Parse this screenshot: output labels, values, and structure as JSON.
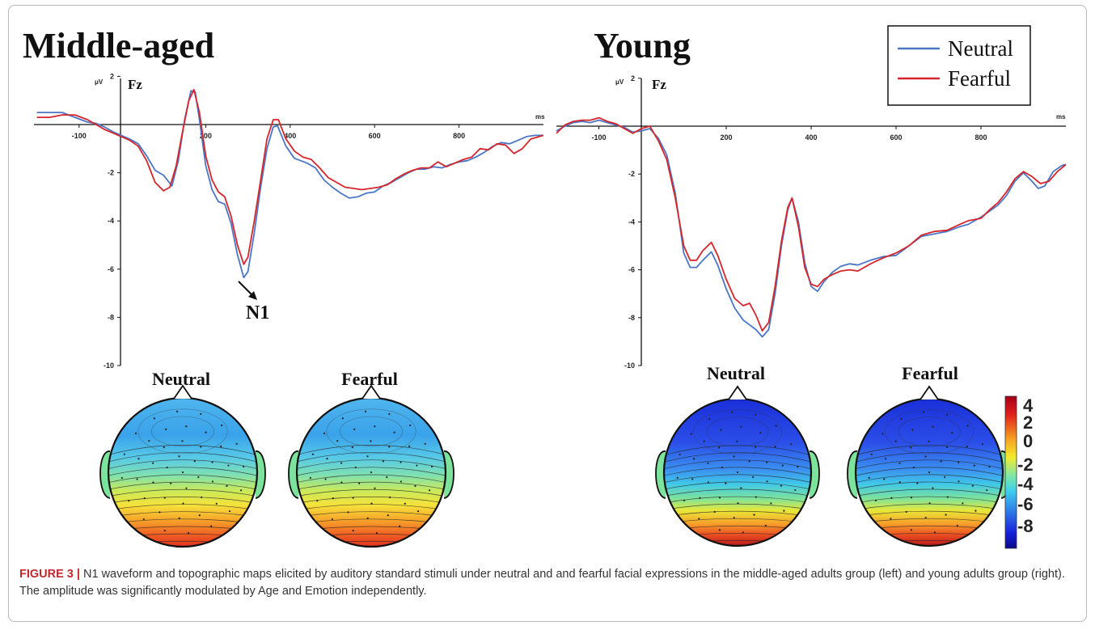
{
  "chart_data": [
    {
      "type": "line",
      "title": "Middle-aged",
      "channel": "Fz",
      "ylabel": "μV",
      "xlabel": "ms",
      "xlim": [
        -200,
        1000
      ],
      "ylim": [
        -10,
        2
      ],
      "x_ticks": [
        -100,
        200,
        400,
        600,
        800
      ],
      "y_ticks": [
        -10,
        -8,
        -6,
        -4,
        -2,
        2
      ],
      "annotation": "N1",
      "series": [
        {
          "name": "Neutral",
          "color": "#4a76c6",
          "points": [
            [
              -200,
              0.5
            ],
            [
              -170,
              0.5
            ],
            [
              -140,
              0.5
            ],
            [
              -110,
              0.3
            ],
            [
              -80,
              0.1
            ],
            [
              -60,
              0.05
            ],
            [
              -40,
              -0.1
            ],
            [
              -20,
              -0.3
            ],
            [
              0,
              -0.45
            ],
            [
              20,
              -0.6
            ],
            [
              40,
              -0.8
            ],
            [
              60,
              -1.3
            ],
            [
              80,
              -1.9
            ],
            [
              100,
              -2.1
            ],
            [
              120,
              -2.55
            ],
            [
              135,
              -1.5
            ],
            [
              150,
              0.2
            ],
            [
              165,
              1.4
            ],
            [
              175,
              1.35
            ],
            [
              185,
              0.2
            ],
            [
              200,
              -1.7
            ],
            [
              215,
              -2.7
            ],
            [
              230,
              -3.2
            ],
            [
              245,
              -3.3
            ],
            [
              260,
              -4.1
            ],
            [
              275,
              -5.4
            ],
            [
              290,
              -6.35
            ],
            [
              300,
              -6.1
            ],
            [
              315,
              -4.5
            ],
            [
              330,
              -2.6
            ],
            [
              345,
              -1.0
            ],
            [
              360,
              -0.1
            ],
            [
              370,
              -0.05
            ],
            [
              390,
              -0.9
            ],
            [
              410,
              -1.4
            ],
            [
              440,
              -1.6
            ],
            [
              460,
              -1.8
            ],
            [
              480,
              -2.3
            ],
            [
              500,
              -2.6
            ],
            [
              520,
              -2.85
            ],
            [
              540,
              -3.05
            ],
            [
              560,
              -3.0
            ],
            [
              580,
              -2.85
            ],
            [
              600,
              -2.8
            ],
            [
              620,
              -2.55
            ],
            [
              640,
              -2.4
            ],
            [
              660,
              -2.2
            ],
            [
              680,
              -2.0
            ],
            [
              700,
              -1.85
            ],
            [
              720,
              -1.85
            ],
            [
              740,
              -1.75
            ],
            [
              760,
              -1.8
            ],
            [
              780,
              -1.65
            ],
            [
              800,
              -1.55
            ],
            [
              820,
              -1.5
            ],
            [
              840,
              -1.35
            ],
            [
              860,
              -1.15
            ],
            [
              880,
              -0.9
            ],
            [
              900,
              -0.75
            ],
            [
              920,
              -0.8
            ],
            [
              940,
              -0.65
            ],
            [
              960,
              -0.5
            ],
            [
              980,
              -0.45
            ],
            [
              1000,
              -0.45
            ]
          ]
        },
        {
          "name": "Fearful",
          "color": "#d6252b",
          "points": [
            [
              -200,
              0.3
            ],
            [
              -170,
              0.3
            ],
            [
              -140,
              0.4
            ],
            [
              -110,
              0.4
            ],
            [
              -80,
              0.2
            ],
            [
              -60,
              0.0
            ],
            [
              -40,
              -0.2
            ],
            [
              -20,
              -0.35
            ],
            [
              0,
              -0.5
            ],
            [
              20,
              -0.65
            ],
            [
              40,
              -0.9
            ],
            [
              60,
              -1.5
            ],
            [
              80,
              -2.4
            ],
            [
              100,
              -2.75
            ],
            [
              115,
              -2.6
            ],
            [
              130,
              -1.7
            ],
            [
              145,
              -0.3
            ],
            [
              160,
              1.0
            ],
            [
              172,
              1.45
            ],
            [
              185,
              0.5
            ],
            [
              200,
              -1.3
            ],
            [
              215,
              -2.3
            ],
            [
              230,
              -2.8
            ],
            [
              245,
              -3.0
            ],
            [
              260,
              -3.8
            ],
            [
              275,
              -5.0
            ],
            [
              290,
              -5.8
            ],
            [
              300,
              -5.5
            ],
            [
              315,
              -4.0
            ],
            [
              330,
              -2.3
            ],
            [
              345,
              -0.6
            ],
            [
              360,
              0.2
            ],
            [
              372,
              0.2
            ],
            [
              390,
              -0.6
            ],
            [
              410,
              -1.1
            ],
            [
              430,
              -1.35
            ],
            [
              450,
              -1.45
            ],
            [
              470,
              -1.8
            ],
            [
              490,
              -2.2
            ],
            [
              510,
              -2.4
            ],
            [
              530,
              -2.6
            ],
            [
              550,
              -2.65
            ],
            [
              570,
              -2.7
            ],
            [
              590,
              -2.65
            ],
            [
              610,
              -2.6
            ],
            [
              630,
              -2.5
            ],
            [
              650,
              -2.25
            ],
            [
              670,
              -2.05
            ],
            [
              690,
              -1.9
            ],
            [
              710,
              -1.8
            ],
            [
              730,
              -1.8
            ],
            [
              750,
              -1.55
            ],
            [
              770,
              -1.75
            ],
            [
              790,
              -1.6
            ],
            [
              810,
              -1.45
            ],
            [
              830,
              -1.35
            ],
            [
              850,
              -1.0
            ],
            [
              870,
              -1.05
            ],
            [
              890,
              -0.8
            ],
            [
              910,
              -0.85
            ],
            [
              930,
              -1.2
            ],
            [
              950,
              -1.0
            ],
            [
              970,
              -0.6
            ],
            [
              1000,
              -0.45
            ]
          ]
        }
      ]
    },
    {
      "type": "line",
      "title": "Young",
      "channel": "Fz",
      "ylabel": "μV",
      "xlabel": "ms",
      "xlim": [
        -200,
        1000
      ],
      "ylim": [
        -10,
        2
      ],
      "x_ticks": [
        -100,
        200,
        400,
        600,
        800
      ],
      "y_ticks": [
        -10,
        -8,
        -6,
        -4,
        -2,
        2
      ],
      "series": [
        {
          "name": "Neutral",
          "color": "#4a76c6",
          "points": [
            [
              -200,
              -0.2
            ],
            [
              -180,
              0.0
            ],
            [
              -160,
              0.15
            ],
            [
              -140,
              0.2
            ],
            [
              -120,
              0.15
            ],
            [
              -100,
              0.25
            ],
            [
              -80,
              0.15
            ],
            [
              -60,
              0.05
            ],
            [
              -40,
              -0.05
            ],
            [
              -20,
              -0.25
            ],
            [
              0,
              -0.2
            ],
            [
              20,
              -0.1
            ],
            [
              40,
              -0.5
            ],
            [
              60,
              -1.2
            ],
            [
              80,
              -2.8
            ],
            [
              100,
              -5.3
            ],
            [
              115,
              -5.9
            ],
            [
              130,
              -5.9
            ],
            [
              145,
              -5.6
            ],
            [
              165,
              -5.25
            ],
            [
              180,
              -5.8
            ],
            [
              200,
              -6.8
            ],
            [
              220,
              -7.6
            ],
            [
              240,
              -8.1
            ],
            [
              255,
              -8.3
            ],
            [
              270,
              -8.5
            ],
            [
              285,
              -8.8
            ],
            [
              300,
              -8.5
            ],
            [
              315,
              -7.0
            ],
            [
              330,
              -5.0
            ],
            [
              345,
              -3.5
            ],
            [
              355,
              -3.0
            ],
            [
              370,
              -4.0
            ],
            [
              385,
              -5.7
            ],
            [
              400,
              -6.7
            ],
            [
              415,
              -6.9
            ],
            [
              430,
              -6.5
            ],
            [
              450,
              -6.1
            ],
            [
              470,
              -5.85
            ],
            [
              490,
              -5.75
            ],
            [
              510,
              -5.8
            ],
            [
              540,
              -5.6
            ],
            [
              570,
              -5.45
            ],
            [
              600,
              -5.4
            ],
            [
              630,
              -5.0
            ],
            [
              660,
              -4.6
            ],
            [
              690,
              -4.5
            ],
            [
              720,
              -4.4
            ],
            [
              750,
              -4.2
            ],
            [
              770,
              -4.1
            ],
            [
              800,
              -3.8
            ],
            [
              820,
              -3.55
            ],
            [
              840,
              -3.3
            ],
            [
              860,
              -2.9
            ],
            [
              880,
              -2.3
            ],
            [
              900,
              -1.95
            ],
            [
              920,
              -2.3
            ],
            [
              935,
              -2.6
            ],
            [
              950,
              -2.5
            ],
            [
              970,
              -1.9
            ],
            [
              990,
              -1.65
            ],
            [
              1000,
              -1.6
            ]
          ]
        },
        {
          "name": "Fearful",
          "color": "#d6252b",
          "points": [
            [
              -200,
              -0.3
            ],
            [
              -180,
              0.05
            ],
            [
              -160,
              0.2
            ],
            [
              -140,
              0.25
            ],
            [
              -120,
              0.25
            ],
            [
              -100,
              0.35
            ],
            [
              -80,
              0.2
            ],
            [
              -60,
              0.1
            ],
            [
              -40,
              -0.1
            ],
            [
              -20,
              -0.3
            ],
            [
              0,
              -0.1
            ],
            [
              20,
              0.0
            ],
            [
              40,
              -0.6
            ],
            [
              60,
              -1.4
            ],
            [
              80,
              -3.0
            ],
            [
              100,
              -5.0
            ],
            [
              115,
              -5.6
            ],
            [
              130,
              -5.6
            ],
            [
              145,
              -5.2
            ],
            [
              165,
              -4.85
            ],
            [
              180,
              -5.4
            ],
            [
              200,
              -6.4
            ],
            [
              220,
              -7.2
            ],
            [
              240,
              -7.5
            ],
            [
              255,
              -7.4
            ],
            [
              270,
              -7.9
            ],
            [
              285,
              -8.55
            ],
            [
              300,
              -8.2
            ],
            [
              315,
              -6.7
            ],
            [
              330,
              -4.8
            ],
            [
              345,
              -3.4
            ],
            [
              355,
              -3.0
            ],
            [
              370,
              -4.2
            ],
            [
              385,
              -5.9
            ],
            [
              400,
              -6.6
            ],
            [
              415,
              -6.7
            ],
            [
              430,
              -6.4
            ],
            [
              450,
              -6.2
            ],
            [
              470,
              -6.05
            ],
            [
              490,
              -6.0
            ],
            [
              510,
              -6.05
            ],
            [
              540,
              -5.75
            ],
            [
              570,
              -5.5
            ],
            [
              600,
              -5.3
            ],
            [
              630,
              -5.0
            ],
            [
              660,
              -4.55
            ],
            [
              690,
              -4.4
            ],
            [
              720,
              -4.35
            ],
            [
              750,
              -4.1
            ],
            [
              770,
              -3.95
            ],
            [
              800,
              -3.85
            ],
            [
              820,
              -3.5
            ],
            [
              840,
              -3.2
            ],
            [
              860,
              -2.75
            ],
            [
              880,
              -2.2
            ],
            [
              900,
              -1.9
            ],
            [
              920,
              -2.1
            ],
            [
              940,
              -2.4
            ],
            [
              960,
              -2.3
            ],
            [
              980,
              -1.9
            ],
            [
              1000,
              -1.6
            ]
          ]
        }
      ]
    }
  ],
  "legend": {
    "items": [
      {
        "label": "Neutral",
        "color": "#4a76c6"
      },
      {
        "label": "Fearful",
        "color": "#d6252b"
      }
    ]
  },
  "topomaps": {
    "middle_neutral_title": "Neutral",
    "middle_fearful_title": "Fearful",
    "young_neutral_title": "Neutral",
    "young_fearful_title": "Fearful"
  },
  "colorbar": {
    "ticks": [
      "4",
      "2",
      "0",
      "-2",
      "-4",
      "-6",
      "-8"
    ]
  },
  "caption": {
    "label": "FIGURE 3 |",
    "text": "N1 waveform and topographic maps elicited by auditory standard stimuli under neutral and and fearful facial expressions in the middle-aged adults group (left) and young adults group (right). The amplitude was significantly modulated by Age and Emotion independently."
  }
}
